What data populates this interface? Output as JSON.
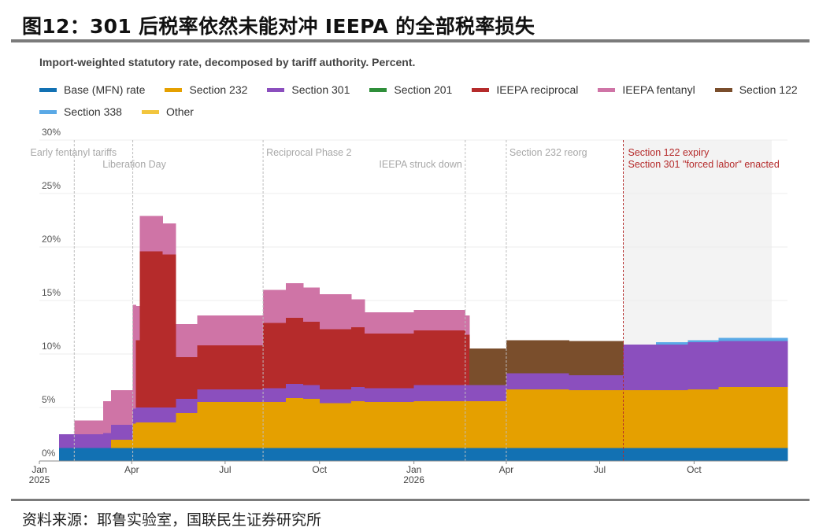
{
  "figure": {
    "title": "图12：301 后税率依然未能对冲 IEEPA 的全部税率损失",
    "source": "资料来源：耶鲁实验室，国联民生证券研究所"
  },
  "colors": {
    "base": "#1271b3",
    "s232": "#e5a000",
    "s301": "#8b4fbe",
    "s201": "#2f8f3a",
    "ieepa_recip": "#b52b2b",
    "ieepa_fent": "#cf74a6",
    "s122": "#7a4e2c",
    "s338": "#5aa9e6",
    "other": "#f2c53d"
  },
  "chart_data": {
    "type": "area",
    "subtitle": "Import-weighted statutory rate, decomposed by tariff authority. Percent.",
    "ylim": [
      0,
      30
    ],
    "y_ticks": [
      0,
      5,
      10,
      15,
      20,
      25,
      30
    ],
    "y_tick_labels": [
      "0%",
      "5%",
      "10%",
      "15%",
      "20%",
      "25%",
      "30%"
    ],
    "x_domain": [
      "2025-01-01",
      "2026-12-31"
    ],
    "x_ticks": [
      {
        "date": "2025-01-01",
        "label": "Jan",
        "sublabel": "2025"
      },
      {
        "date": "2025-04-01",
        "label": "Apr",
        "sublabel": ""
      },
      {
        "date": "2025-07-01",
        "label": "Jul",
        "sublabel": ""
      },
      {
        "date": "2025-10-01",
        "label": "Oct",
        "sublabel": ""
      },
      {
        "date": "2026-01-01",
        "label": "Jan",
        "sublabel": "2026"
      },
      {
        "date": "2026-04-01",
        "label": "Apr",
        "sublabel": ""
      },
      {
        "date": "2026-07-01",
        "label": "Jul",
        "sublabel": ""
      },
      {
        "date": "2026-10-01",
        "label": "Oct",
        "sublabel": ""
      }
    ],
    "grid": "horizontal",
    "legend_position": "top",
    "series": [
      {
        "name": "Base (MFN) rate",
        "key": "base"
      },
      {
        "name": "Section 232",
        "key": "s232"
      },
      {
        "name": "Section 301",
        "key": "s301"
      },
      {
        "name": "Section 201",
        "key": "s201"
      },
      {
        "name": "IEEPA reciprocal",
        "key": "ieepa_recip"
      },
      {
        "name": "IEEPA fentanyl",
        "key": "ieepa_fent"
      },
      {
        "name": "Section 122",
        "key": "s122"
      },
      {
        "name": "Section 338",
        "key": "s338"
      },
      {
        "name": "Other",
        "key": "other"
      }
    ],
    "stack_order": [
      "base",
      "s232",
      "s301",
      "s201",
      "ieepa_recip",
      "ieepa_fent",
      "s122",
      "s338",
      "other"
    ],
    "periods": [
      {
        "start": "2025-01-20",
        "end": "2025-02-04",
        "base": 1.2,
        "s232": 0,
        "s301": 1.3,
        "s201": 0,
        "ieepa_recip": 0,
        "ieepa_fent": 0,
        "s122": 0,
        "s338": 0,
        "other": 0
      },
      {
        "start": "2025-02-04",
        "end": "2025-03-04",
        "base": 1.2,
        "s232": 0,
        "s301": 1.3,
        "s201": 0,
        "ieepa_recip": 0,
        "ieepa_fent": 1.3,
        "s122": 0,
        "s338": 0,
        "other": 0
      },
      {
        "start": "2025-03-04",
        "end": "2025-03-12",
        "base": 1.2,
        "s232": 0,
        "s301": 1.4,
        "s201": 0,
        "ieepa_recip": 0,
        "ieepa_fent": 3.0,
        "s122": 0,
        "s338": 0,
        "other": 0
      },
      {
        "start": "2025-03-12",
        "end": "2025-04-02",
        "base": 1.2,
        "s232": 0.8,
        "s301": 1.4,
        "s201": 0,
        "ieepa_recip": 0,
        "ieepa_fent": 3.2,
        "s122": 0,
        "s338": 0,
        "other": 0
      },
      {
        "start": "2025-04-02",
        "end": "2025-04-05",
        "base": 1.2,
        "s232": 2.3,
        "s301": 1.4,
        "s201": 0,
        "ieepa_recip": 0,
        "ieepa_fent": 9.7,
        "s122": 0,
        "s338": 0,
        "other": 0
      },
      {
        "start": "2025-04-05",
        "end": "2025-04-09",
        "base": 1.2,
        "s232": 2.4,
        "s301": 1.4,
        "s201": 0,
        "ieepa_recip": 6.3,
        "ieepa_fent": 3.2,
        "s122": 0,
        "s338": 0,
        "other": 0
      },
      {
        "start": "2025-04-09",
        "end": "2025-05-01",
        "base": 1.2,
        "s232": 2.4,
        "s301": 1.4,
        "s201": 0,
        "ieepa_recip": 14.6,
        "ieepa_fent": 3.3,
        "s122": 0,
        "s338": 0,
        "other": 0
      },
      {
        "start": "2025-05-01",
        "end": "2025-05-14",
        "base": 1.2,
        "s232": 2.4,
        "s301": 1.4,
        "s201": 0,
        "ieepa_recip": 14.3,
        "ieepa_fent": 2.9,
        "s122": 0,
        "s338": 0,
        "other": 0
      },
      {
        "start": "2025-05-14",
        "end": "2025-06-04",
        "base": 1.2,
        "s232": 3.3,
        "s301": 1.3,
        "s201": 0,
        "ieepa_recip": 3.9,
        "ieepa_fent": 3.1,
        "s122": 0,
        "s338": 0,
        "other": 0
      },
      {
        "start": "2025-06-04",
        "end": "2025-08-07",
        "base": 1.2,
        "s232": 4.3,
        "s301": 1.2,
        "s201": 0,
        "ieepa_recip": 4.1,
        "ieepa_fent": 2.8,
        "s122": 0,
        "s338": 0,
        "other": 0
      },
      {
        "start": "2025-08-07",
        "end": "2025-08-29",
        "base": 1.2,
        "s232": 4.3,
        "s301": 1.3,
        "s201": 0,
        "ieepa_recip": 6.1,
        "ieepa_fent": 3.1,
        "s122": 0,
        "s338": 0,
        "other": 0
      },
      {
        "start": "2025-08-29",
        "end": "2025-09-15",
        "base": 1.2,
        "s232": 4.7,
        "s301": 1.3,
        "s201": 0,
        "ieepa_recip": 6.2,
        "ieepa_fent": 3.2,
        "s122": 0,
        "s338": 0,
        "other": 0
      },
      {
        "start": "2025-09-15",
        "end": "2025-10-01",
        "base": 1.2,
        "s232": 4.6,
        "s301": 1.3,
        "s201": 0,
        "ieepa_recip": 5.9,
        "ieepa_fent": 3.2,
        "s122": 0,
        "s338": 0,
        "other": 0
      },
      {
        "start": "2025-10-01",
        "end": "2025-11-01",
        "base": 1.2,
        "s232": 4.2,
        "s301": 1.3,
        "s201": 0,
        "ieepa_recip": 5.6,
        "ieepa_fent": 3.3,
        "s122": 0,
        "s338": 0,
        "other": 0
      },
      {
        "start": "2025-11-01",
        "end": "2025-11-14",
        "base": 1.2,
        "s232": 4.4,
        "s301": 1.3,
        "s201": 0,
        "ieepa_recip": 5.6,
        "ieepa_fent": 2.6,
        "s122": 0,
        "s338": 0,
        "other": 0
      },
      {
        "start": "2025-11-14",
        "end": "2026-01-01",
        "base": 1.2,
        "s232": 4.3,
        "s301": 1.3,
        "s201": 0,
        "ieepa_recip": 5.1,
        "ieepa_fent": 2.0,
        "s122": 0,
        "s338": 0,
        "other": 0
      },
      {
        "start": "2026-01-01",
        "end": "2026-02-20",
        "base": 1.2,
        "s232": 4.4,
        "s301": 1.5,
        "s201": 0,
        "ieepa_recip": 5.1,
        "ieepa_fent": 1.9,
        "s122": 0,
        "s338": 0,
        "other": 0
      },
      {
        "start": "2026-02-20",
        "end": "2026-02-24",
        "base": 1.2,
        "s232": 4.4,
        "s301": 1.5,
        "s201": 0,
        "ieepa_recip": 4.7,
        "ieepa_fent": 1.8,
        "s122": 0,
        "s338": 0,
        "other": 0
      },
      {
        "start": "2026-02-24",
        "end": "2026-04-01",
        "base": 1.2,
        "s232": 4.4,
        "s301": 1.5,
        "s201": 0,
        "ieepa_recip": 0,
        "ieepa_fent": 0,
        "s122": 3.4,
        "s338": 0,
        "other": 0
      },
      {
        "start": "2026-04-01",
        "end": "2026-06-01",
        "base": 1.2,
        "s232": 5.5,
        "s301": 1.5,
        "s201": 0,
        "ieepa_recip": 0,
        "ieepa_fent": 0,
        "s122": 3.1,
        "s338": 0,
        "other": 0
      },
      {
        "start": "2026-06-01",
        "end": "2026-07-24",
        "base": 1.2,
        "s232": 5.4,
        "s301": 1.4,
        "s201": 0,
        "ieepa_recip": 0,
        "ieepa_fent": 0,
        "s122": 3.2,
        "s338": 0,
        "other": 0
      },
      {
        "start": "2026-07-24",
        "end": "2026-08-25",
        "base": 1.2,
        "s232": 5.4,
        "s301": 4.3,
        "s201": 0,
        "ieepa_recip": 0,
        "ieepa_fent": 0,
        "s122": 0,
        "s338": 0,
        "other": 0
      },
      {
        "start": "2026-08-25",
        "end": "2026-09-25",
        "base": 1.2,
        "s232": 5.4,
        "s301": 4.3,
        "s201": 0,
        "ieepa_recip": 0,
        "ieepa_fent": 0,
        "s122": 0,
        "s338": 0.2,
        "other": 0
      },
      {
        "start": "2026-09-25",
        "end": "2026-10-25",
        "base": 1.2,
        "s232": 5.5,
        "s301": 4.4,
        "s201": 0,
        "ieepa_recip": 0,
        "ieepa_fent": 0,
        "s122": 0,
        "s338": 0.2,
        "other": 0
      },
      {
        "start": "2026-10-25",
        "end": "2026-12-31",
        "base": 1.2,
        "s232": 5.7,
        "s301": 4.3,
        "s201": 0,
        "ieepa_recip": 0,
        "ieepa_fent": 0,
        "s122": 0,
        "s338": 0.3,
        "other": 0
      }
    ],
    "annotations": [
      {
        "date": "2025-02-04",
        "label": "Early fentanyl tariffs",
        "text_row": 1,
        "style": "gray"
      },
      {
        "date": "2025-04-02",
        "label": "Liberation Day",
        "text_row": 2,
        "style": "gray"
      },
      {
        "date": "2025-08-07",
        "label": "Reciprocal Phase 2",
        "text_row": 1,
        "style": "gray"
      },
      {
        "date": "2026-02-20",
        "label": "IEEPA struck down",
        "text_row": 2,
        "style": "gray"
      },
      {
        "date": "2026-04-01",
        "label": "Section 232 reorg",
        "text_row": 1,
        "style": "gray"
      },
      {
        "date": "2026-07-24",
        "label": "Section 122 expiry",
        "text_row": 1,
        "style": "red"
      },
      {
        "date": "2026-07-24",
        "label": "Section 301 \"forced labor\" enacted",
        "text_row": 2,
        "style": "red"
      }
    ],
    "projection_shaded_from": "2026-07-24"
  }
}
